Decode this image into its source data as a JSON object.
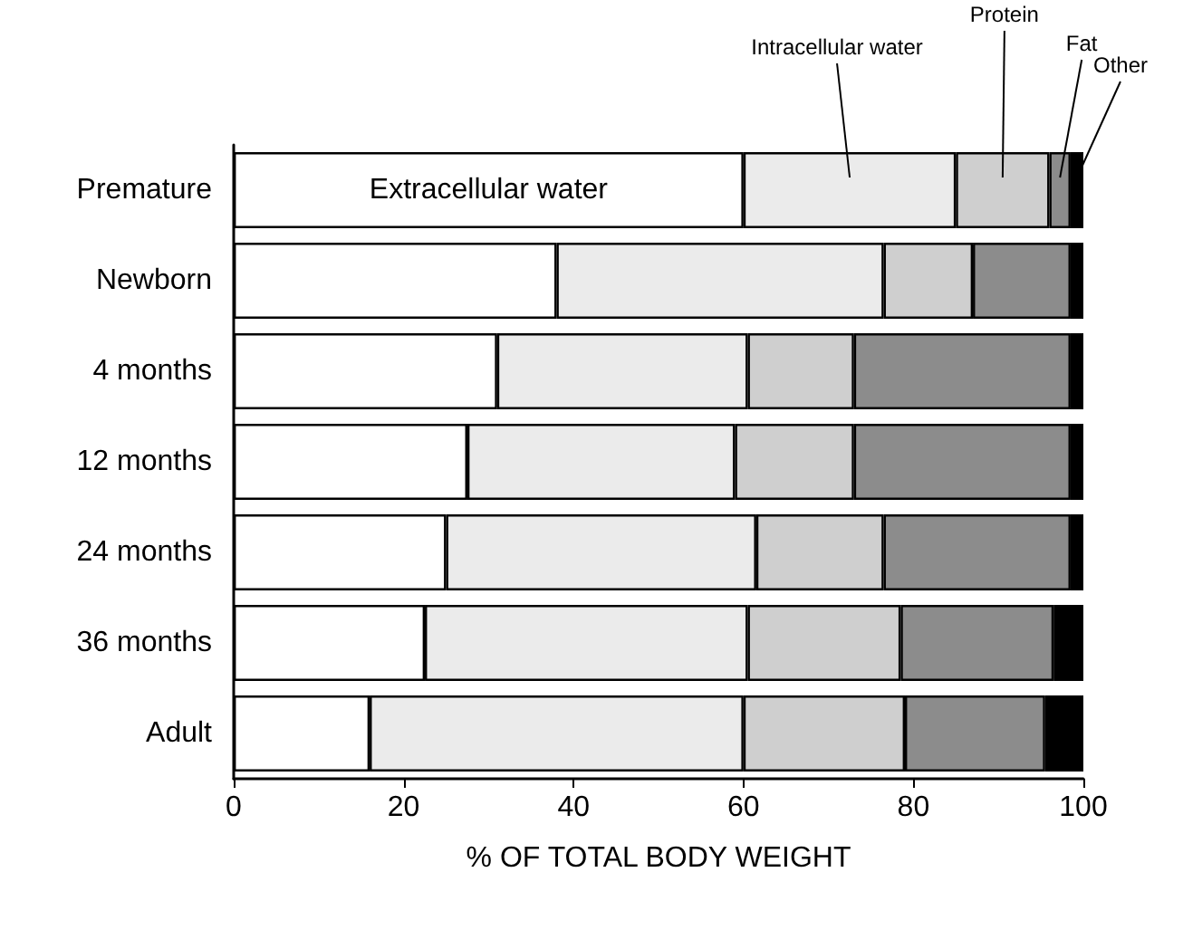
{
  "chart_data": {
    "type": "bar",
    "orientation": "horizontal",
    "stacked": true,
    "xlabel": "% OF TOTAL BODY WEIGHT",
    "categories": [
      "Premature",
      "Newborn",
      "4 months",
      "12 months",
      "24 months",
      "36 months",
      "Adult"
    ],
    "series": [
      {
        "name": "Extracellular water",
        "color": "#ffffff",
        "values": [
          60,
          38,
          31,
          27.5,
          25,
          22.5,
          16
        ]
      },
      {
        "name": "Intracellular water",
        "color": "#ebebeb",
        "values": [
          25,
          38.5,
          29.5,
          31.5,
          36.5,
          38,
          44
        ]
      },
      {
        "name": "Protein",
        "color": "#cfcfcf",
        "values": [
          11,
          10.5,
          12.5,
          14,
          15,
          18,
          19
        ]
      },
      {
        "name": "Fat",
        "color": "#8c8c8c",
        "values": [
          2.5,
          11.5,
          25.5,
          25.5,
          22,
          18,
          16.5
        ]
      },
      {
        "name": "Other",
        "color": "#000000",
        "values": [
          1.5,
          1.5,
          1.5,
          1.5,
          1.5,
          3.5,
          4.5
        ]
      }
    ],
    "xlim": [
      0,
      100
    ],
    "xticks": [
      0,
      20,
      40,
      60,
      80,
      100
    ],
    "grid": false,
    "legend": false
  }
}
